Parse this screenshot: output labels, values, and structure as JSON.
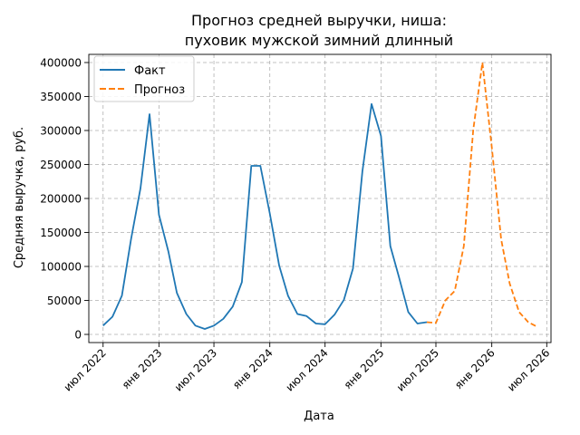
{
  "chart_data": {
    "type": "line",
    "title": "Прогноз средней выручки, ниша:\nпуховик мужской зимний длинный",
    "title_lines": [
      "Прогноз средней выручки, ниша:",
      "пуховик мужской зимний длинный"
    ],
    "xlabel": "Дата",
    "ylabel": "Средняя выручка, руб.",
    "ylim": [
      -12000,
      412000
    ],
    "xlim": [
      "2022-05-15",
      "2026-07-15"
    ],
    "grid": true,
    "legend_position": "upper left",
    "x_ticks": [
      {
        "date": "2022-07-01",
        "label": "июл 2022"
      },
      {
        "date": "2023-01-01",
        "label": "янв 2023"
      },
      {
        "date": "2023-07-01",
        "label": "июл 2023"
      },
      {
        "date": "2024-01-01",
        "label": "янв 2024"
      },
      {
        "date": "2024-07-01",
        "label": "июл 2024"
      },
      {
        "date": "2025-01-01",
        "label": "янв 2025"
      },
      {
        "date": "2025-07-01",
        "label": "июл 2025"
      },
      {
        "date": "2026-01-01",
        "label": "янв 2026"
      },
      {
        "date": "2026-07-01",
        "label": "июл 2026"
      }
    ],
    "y_ticks": [
      0,
      50000,
      100000,
      150000,
      200000,
      250000,
      300000,
      350000,
      400000
    ],
    "series": [
      {
        "name": "Факт",
        "color": "#1f77b4",
        "dash": "solid",
        "x": [
          "2022-07-01",
          "2022-08-01",
          "2022-09-01",
          "2022-10-01",
          "2022-11-01",
          "2022-12-01",
          "2023-01-01",
          "2023-02-01",
          "2023-03-01",
          "2023-04-01",
          "2023-05-01",
          "2023-06-01",
          "2023-07-01",
          "2023-08-01",
          "2023-09-01",
          "2023-10-01",
          "2023-11-01",
          "2023-12-01",
          "2024-01-01",
          "2024-02-01",
          "2024-03-01",
          "2024-04-01",
          "2024-05-01",
          "2024-06-01",
          "2024-07-01",
          "2024-08-01",
          "2024-09-01",
          "2024-10-01",
          "2024-11-01",
          "2024-12-01",
          "2025-01-01",
          "2025-02-01",
          "2025-03-01",
          "2025-04-01",
          "2025-05-01",
          "2025-06-01"
        ],
        "y": [
          13000,
          26000,
          57000,
          140000,
          215000,
          324000,
          176000,
          122000,
          61000,
          30000,
          13000,
          8000,
          13000,
          23000,
          41000,
          77000,
          248000,
          248000,
          178000,
          101000,
          57000,
          30000,
          27000,
          16000,
          15000,
          29000,
          51000,
          97000,
          240000,
          339000,
          292000,
          130000,
          85000,
          33000,
          16000,
          18000
        ]
      },
      {
        "name": "Прогноз",
        "color": "#ff7f0e",
        "dash": "dashed",
        "x": [
          "2025-06-01",
          "2025-07-01",
          "2025-08-01",
          "2025-09-01",
          "2025-10-01",
          "2025-11-01",
          "2025-12-01",
          "2026-01-01",
          "2026-02-01",
          "2026-03-01",
          "2026-04-01",
          "2026-05-01",
          "2026-06-01"
        ],
        "y": [
          18000,
          17000,
          50000,
          64000,
          130000,
          301000,
          400000,
          275000,
          140000,
          75000,
          33000,
          18000,
          11000
        ]
      }
    ]
  }
}
